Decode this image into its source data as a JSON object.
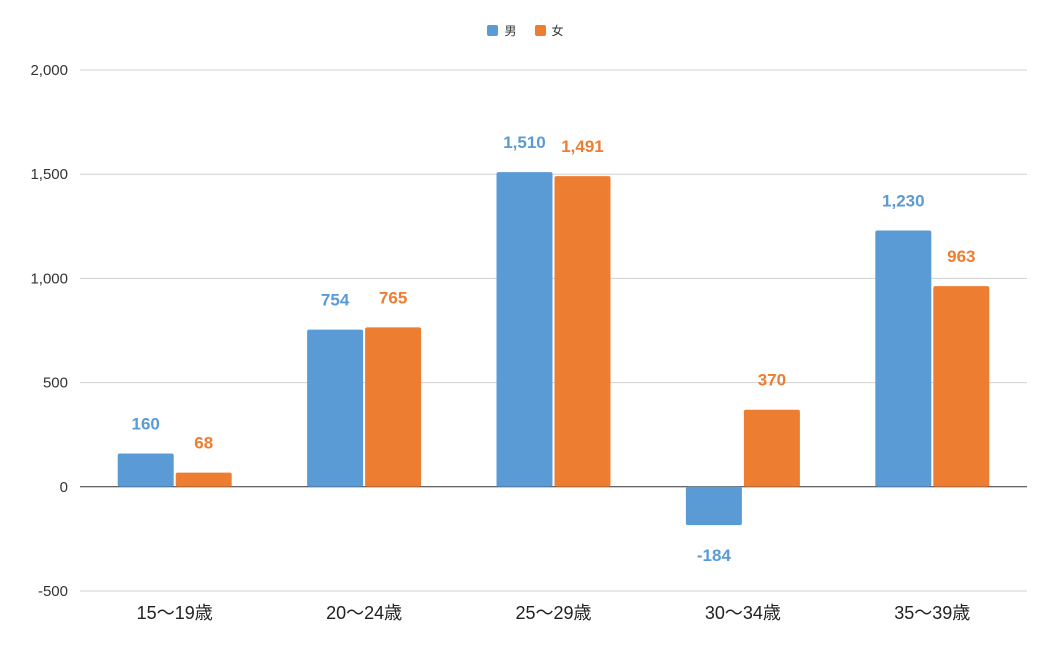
{
  "chart_data": {
    "type": "bar",
    "categories": [
      "15〜19歳",
      "20〜24歳",
      "25〜29歳",
      "30〜34歳",
      "35〜39歳"
    ],
    "series": [
      {
        "name": "男",
        "color": "#5b9bd5",
        "values": [
          160,
          754,
          1510,
          -184,
          1230
        ],
        "labels": [
          "160",
          "754",
          "1,510",
          "-184",
          "1,230"
        ]
      },
      {
        "name": "女",
        "color": "#ed7d31",
        "values": [
          68,
          765,
          1491,
          370,
          963
        ],
        "labels": [
          "68",
          "765",
          "1,491",
          "370",
          "963"
        ]
      }
    ],
    "ylim": [
      -500,
      2000
    ],
    "yticks": [
      -500,
      0,
      500,
      1000,
      1500,
      2000
    ],
    "ytick_labels": [
      "-500",
      "0",
      "500",
      "1,000",
      "1,500",
      "2,000"
    ],
    "grid": true,
    "legend_position": "top-center"
  }
}
